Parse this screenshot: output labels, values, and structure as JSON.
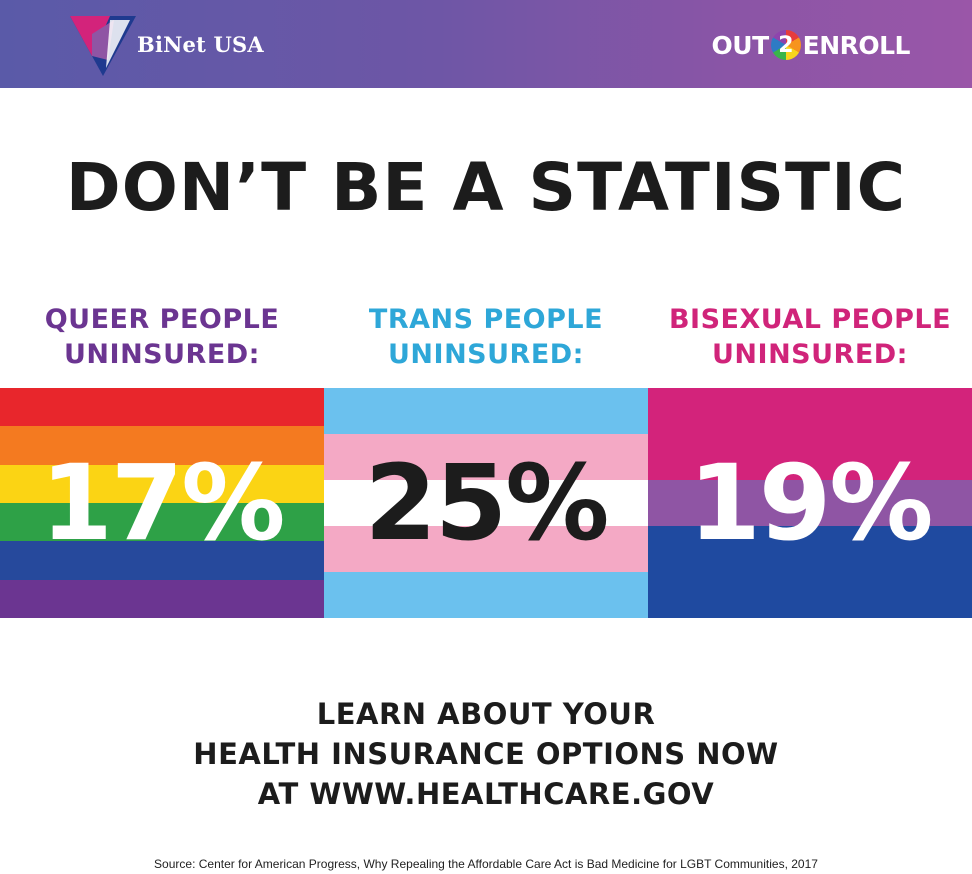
{
  "header": {
    "binet_name": "BiNet USA",
    "out2enroll": {
      "left": "OUT",
      "digit": "2",
      "right": "ENROLL"
    }
  },
  "headline": "DON’T BE A STATISTIC",
  "stats": [
    {
      "label_line1": "QUEER PEOPLE",
      "label_line2": "UNINSURED:",
      "label_color": "#6b3591",
      "value": "17%",
      "value_color": "#ffffff",
      "flag_colors": [
        "#e8262c",
        "#f47a20",
        "#fbd414",
        "#2ea147",
        "#26499c",
        "#6b3591"
      ]
    },
    {
      "label_line1": "TRANS PEOPLE",
      "label_line2": "UNINSURED:",
      "label_color": "#2ea7d8",
      "value": "25%",
      "value_color": "#1c1c1c",
      "flag_colors": [
        "#6bc1ee",
        "#f4a9c5",
        "#ffffff",
        "#f4a9c5",
        "#6bc1ee"
      ]
    },
    {
      "label_line1": "BISEXUAL PEOPLE",
      "label_line2": "UNINSURED:",
      "label_color": "#d0247a",
      "value": "19%",
      "value_color": "#ffffff",
      "flag_colors": [
        "#d3237b",
        "#8f55a4",
        "#1f4aa0"
      ]
    }
  ],
  "cta": {
    "line1": "LEARN ABOUT YOUR",
    "line2": "HEALTH INSURANCE OPTIONS NOW",
    "line3": "AT WWW.HEALTHCARE.GOV"
  },
  "source": "Source: Center for American Progress, Why Repealing the Affordable Care Act is Bad Medicine for LGBT Communities, 2017"
}
